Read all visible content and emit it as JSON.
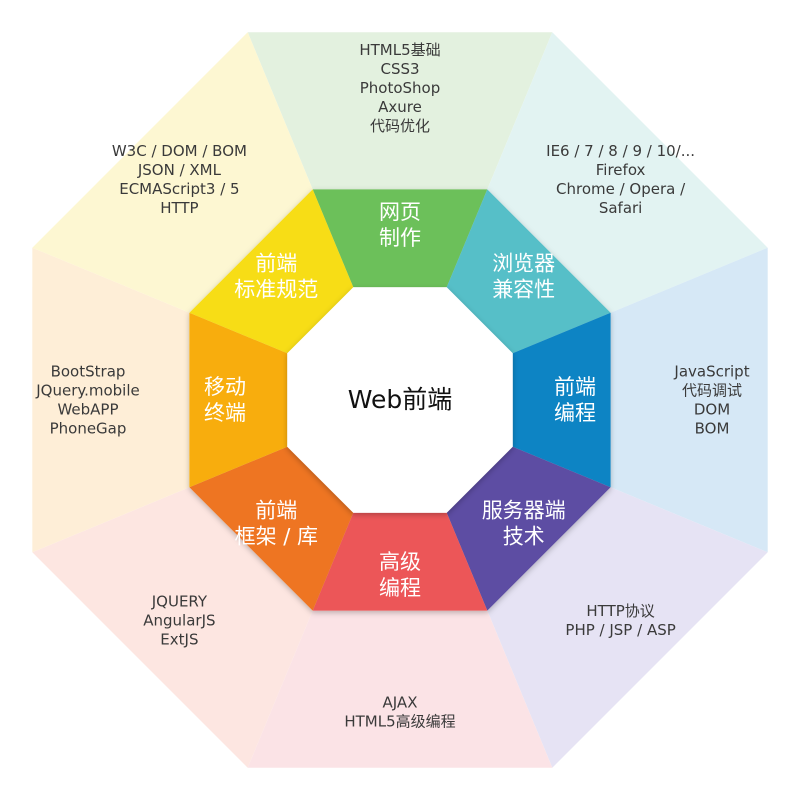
{
  "center": {
    "label": "Web前端"
  },
  "segments": [
    {
      "id": "web-page",
      "title": [
        "网页",
        "制作"
      ],
      "color": "#6cc05a",
      "outer_color": "#e3f1df",
      "items": [
        "HTML5基础",
        "CSS3",
        "PhotoShop",
        "Axure",
        "代码优化"
      ]
    },
    {
      "id": "browser-compat",
      "title": [
        "浏览器",
        "兼容性"
      ],
      "color": "#56bfc8",
      "outer_color": "#e2f3f2",
      "items": [
        "IE6 / 7 / 8 / 9 / 10/...",
        "Firefox",
        "Chrome / Opera /",
        "Safari"
      ]
    },
    {
      "id": "frontend-programming",
      "title": [
        "前端",
        "编程"
      ],
      "color": "#0d84c4",
      "outer_color": "#d6e8f6",
      "items": [
        "JavaScript",
        "代码调试",
        "DOM",
        "BOM"
      ]
    },
    {
      "id": "server-tech",
      "title": [
        "服务器端",
        "技术"
      ],
      "color": "#5d4ea3",
      "outer_color": "#e6e3f4",
      "items": [
        "HTTP协议",
        "PHP / JSP / ASP"
      ]
    },
    {
      "id": "advanced-programming",
      "title": [
        "高级",
        "编程"
      ],
      "color": "#ec5658",
      "outer_color": "#fbe3e6",
      "items": [
        "AJAX",
        "HTML5高级编程"
      ]
    },
    {
      "id": "frameworks",
      "title": [
        "前端",
        "框架 / 库"
      ],
      "color": "#ee7521",
      "outer_color": "#fde6e1",
      "items": [
        "JQUERY",
        "AngularJS",
        "ExtJS"
      ]
    },
    {
      "id": "mobile",
      "title": [
        "移动",
        "终端"
      ],
      "color": "#f8ad10",
      "outer_color": "#feeed7",
      "items": [
        "BootStrap",
        "JQuery.mobile",
        "WebAPP",
        "PhoneGap"
      ]
    },
    {
      "id": "standards",
      "title": [
        "前端",
        "标准规范"
      ],
      "color": "#f7dd19",
      "outer_color": "#fdf7d2",
      "items": [
        "W3C / DOM / BOM",
        "JSON / XML",
        "ECMAScript3 / 5",
        "HTTP"
      ]
    }
  ]
}
